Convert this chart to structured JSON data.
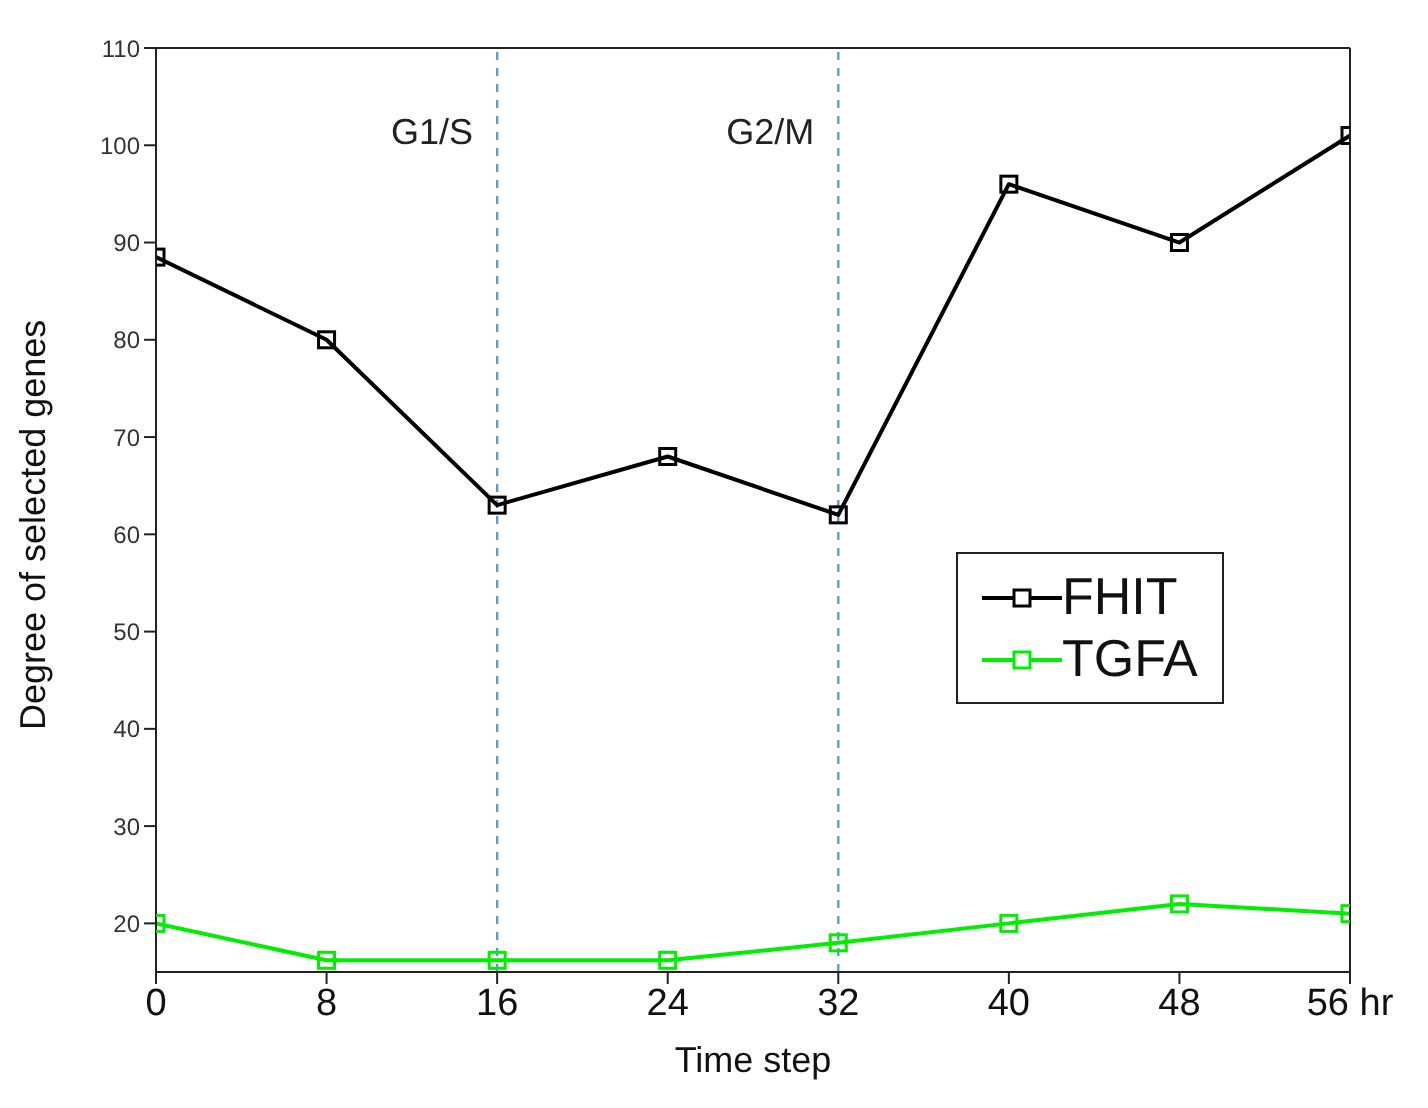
{
  "chart_data": {
    "type": "line",
    "xlabel": "Time step",
    "ylabel": "Degree of selected genes",
    "x": [
      0,
      8,
      16,
      24,
      32,
      40,
      48,
      56
    ],
    "series": [
      {
        "name": "FHIT",
        "color": "#000000",
        "values": [
          88.5,
          80,
          63,
          68,
          62,
          96,
          90,
          101
        ]
      },
      {
        "name": "TGFA",
        "color": "#00ee00",
        "values": [
          20,
          16.2,
          16.2,
          16.2,
          18,
          20,
          22,
          21
        ]
      }
    ],
    "xlim": [
      0,
      56
    ],
    "xticks": [
      0,
      8,
      16,
      24,
      32,
      40,
      48,
      {
        "value": 56,
        "label": "56 hr"
      }
    ],
    "ylim": [
      15,
      110
    ],
    "yticks": [
      20,
      30,
      40,
      50,
      60,
      70,
      80,
      90,
      100,
      110
    ],
    "ref_lines": [
      {
        "axis": "x",
        "value": 16,
        "label": "G1/S",
        "color": "#5b9bd5",
        "line_style": "dashed"
      },
      {
        "axis": "x",
        "value": 32,
        "label": "G2/M",
        "color": "#5b9bd5",
        "line_style": "dashed"
      }
    ],
    "grid": false,
    "legend": "right",
    "marker": "square",
    "line_style": "solid"
  }
}
